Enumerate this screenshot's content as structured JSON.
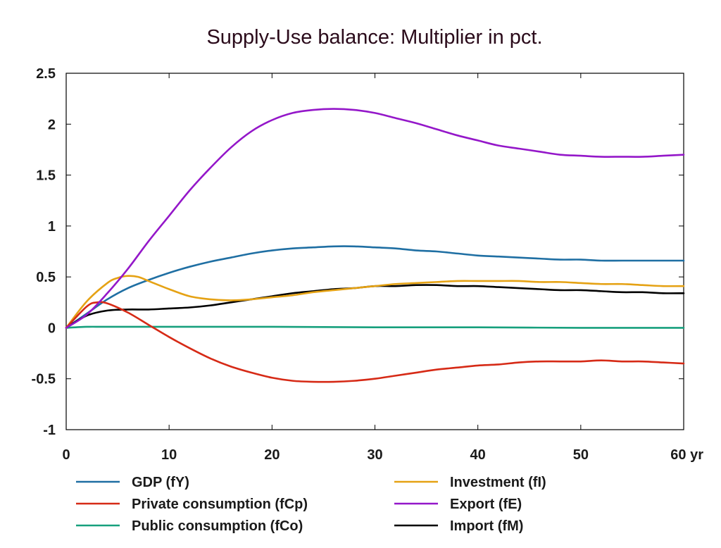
{
  "chart_data": {
    "type": "line",
    "title": "Supply-Use balance: Multiplier in pct.",
    "xlabel": "",
    "ylabel": "",
    "x_unit_label": "yr",
    "xlim": [
      0,
      60
    ],
    "ylim": [
      -1,
      2.5
    ],
    "x_ticks": [
      0,
      10,
      20,
      30,
      40,
      50,
      60
    ],
    "y_ticks": [
      -1,
      -0.5,
      0,
      0.5,
      1,
      1.5,
      2,
      2.5
    ],
    "grid": false,
    "legend_position": "bottom",
    "series": [
      {
        "name": "GDP (fY)",
        "color": "#1f6fa3",
        "x": [
          0,
          2,
          4,
          6,
          8,
          10,
          12,
          14,
          16,
          18,
          20,
          22,
          24,
          26,
          28,
          30,
          32,
          34,
          36,
          38,
          40,
          42,
          44,
          46,
          48,
          50,
          52,
          54,
          56,
          58,
          60
        ],
        "y": [
          0,
          0.14,
          0.28,
          0.39,
          0.47,
          0.54,
          0.6,
          0.65,
          0.69,
          0.73,
          0.76,
          0.78,
          0.79,
          0.8,
          0.8,
          0.79,
          0.78,
          0.76,
          0.75,
          0.73,
          0.71,
          0.7,
          0.69,
          0.68,
          0.67,
          0.67,
          0.66,
          0.66,
          0.66,
          0.66,
          0.66
        ]
      },
      {
        "name": "Private consumption (fCp)",
        "color": "#d62a16",
        "x": [
          0,
          2,
          3,
          4,
          6,
          8,
          10,
          12,
          14,
          16,
          18,
          20,
          22,
          24,
          26,
          28,
          30,
          32,
          34,
          36,
          38,
          40,
          42,
          44,
          46,
          48,
          50,
          52,
          54,
          56,
          58,
          60
        ],
        "y": [
          0,
          0.21,
          0.25,
          0.24,
          0.15,
          0.03,
          -0.09,
          -0.2,
          -0.3,
          -0.38,
          -0.44,
          -0.49,
          -0.52,
          -0.53,
          -0.53,
          -0.52,
          -0.5,
          -0.47,
          -0.44,
          -0.41,
          -0.39,
          -0.37,
          -0.36,
          -0.34,
          -0.33,
          -0.33,
          -0.33,
          -0.32,
          -0.33,
          -0.33,
          -0.34,
          -0.35
        ]
      },
      {
        "name": "Public consumption (fCo)",
        "color": "#17a07d",
        "x": [
          0,
          2,
          4,
          10,
          20,
          30,
          40,
          50,
          60
        ],
        "y": [
          0,
          0.01,
          0.01,
          0.01,
          0.01,
          0.005,
          0.005,
          0.0,
          0.0
        ]
      },
      {
        "name": "Investment (fI)",
        "color": "#e5a214",
        "x": [
          0,
          2,
          4,
          5,
          6,
          7,
          8,
          10,
          12,
          14,
          16,
          18,
          20,
          22,
          24,
          26,
          28,
          30,
          32,
          34,
          36,
          38,
          40,
          42,
          44,
          46,
          48,
          50,
          52,
          54,
          56,
          58,
          60
        ],
        "y": [
          0,
          0.26,
          0.44,
          0.49,
          0.51,
          0.5,
          0.46,
          0.38,
          0.31,
          0.28,
          0.27,
          0.28,
          0.3,
          0.32,
          0.35,
          0.37,
          0.39,
          0.41,
          0.43,
          0.44,
          0.45,
          0.46,
          0.46,
          0.46,
          0.46,
          0.45,
          0.45,
          0.44,
          0.43,
          0.43,
          0.42,
          0.41,
          0.41
        ]
      },
      {
        "name": "Export (fE)",
        "color": "#9417c9",
        "x": [
          0,
          2,
          4,
          6,
          8,
          10,
          12,
          14,
          16,
          18,
          20,
          22,
          24,
          26,
          28,
          30,
          32,
          34,
          36,
          38,
          40,
          42,
          44,
          46,
          48,
          50,
          52,
          54,
          56,
          58,
          60
        ],
        "y": [
          0,
          0.13,
          0.34,
          0.58,
          0.85,
          1.1,
          1.35,
          1.57,
          1.77,
          1.93,
          2.04,
          2.11,
          2.14,
          2.15,
          2.14,
          2.11,
          2.06,
          2.01,
          1.95,
          1.89,
          1.84,
          1.79,
          1.76,
          1.73,
          1.7,
          1.69,
          1.68,
          1.68,
          1.68,
          1.69,
          1.7
        ]
      },
      {
        "name": "Import (fM)",
        "color": "#000000",
        "x": [
          0,
          2,
          4,
          6,
          8,
          10,
          12,
          14,
          16,
          18,
          20,
          22,
          24,
          26,
          28,
          30,
          32,
          34,
          36,
          38,
          40,
          42,
          44,
          46,
          48,
          50,
          52,
          54,
          56,
          58,
          60
        ],
        "y": [
          0,
          0.12,
          0.17,
          0.18,
          0.18,
          0.19,
          0.2,
          0.22,
          0.25,
          0.28,
          0.31,
          0.34,
          0.36,
          0.38,
          0.39,
          0.41,
          0.41,
          0.42,
          0.42,
          0.41,
          0.41,
          0.4,
          0.39,
          0.38,
          0.37,
          0.37,
          0.36,
          0.35,
          0.35,
          0.34,
          0.34
        ]
      }
    ]
  }
}
